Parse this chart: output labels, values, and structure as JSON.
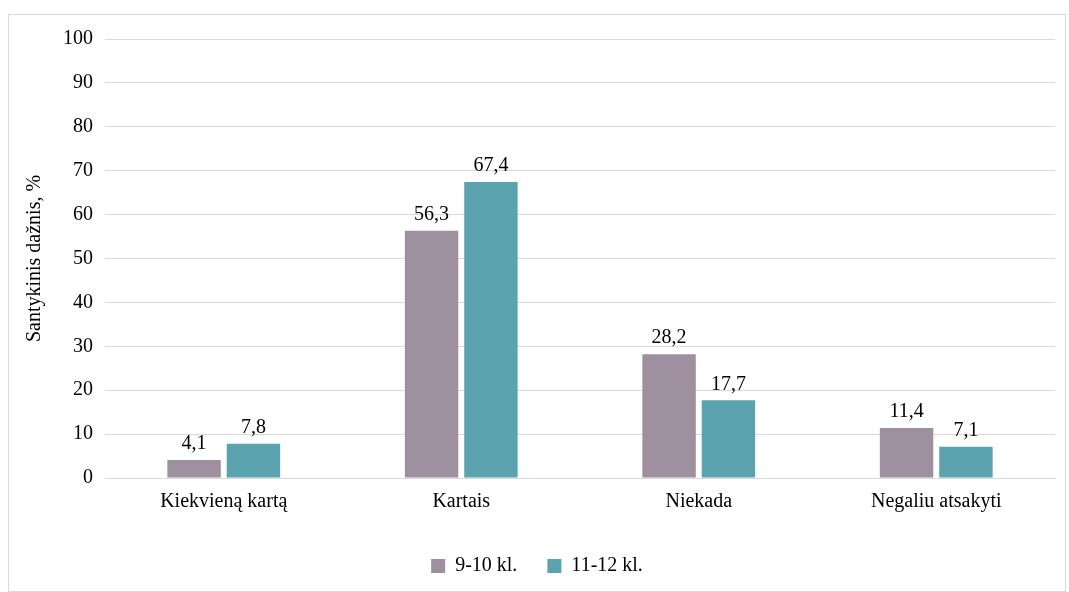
{
  "chart_data": {
    "type": "bar",
    "ylabel": "Santykinis dažnis, %",
    "categories": [
      "Kiekvieną kartą",
      "Kartais",
      "Niekada",
      "Negaliu atsakyti"
    ],
    "series": [
      {
        "name": "9-10 kl.",
        "color": "#9e909f",
        "values": [
          4.1,
          56.3,
          28.2,
          11.4
        ],
        "value_labels": [
          "4,1",
          "56,3",
          "28,2",
          "11,4"
        ]
      },
      {
        "name": "11-12 kl.",
        "color": "#5ba4af",
        "values": [
          7.8,
          67.4,
          17.7,
          7.1
        ],
        "value_labels": [
          "7,8",
          "67,4",
          "17,7",
          "7,1"
        ]
      }
    ],
    "ylim": [
      0,
      100
    ],
    "yticks": [
      0,
      10,
      20,
      30,
      40,
      50,
      60,
      70,
      80,
      90,
      100
    ],
    "grid": "y",
    "legend": "bottom"
  }
}
